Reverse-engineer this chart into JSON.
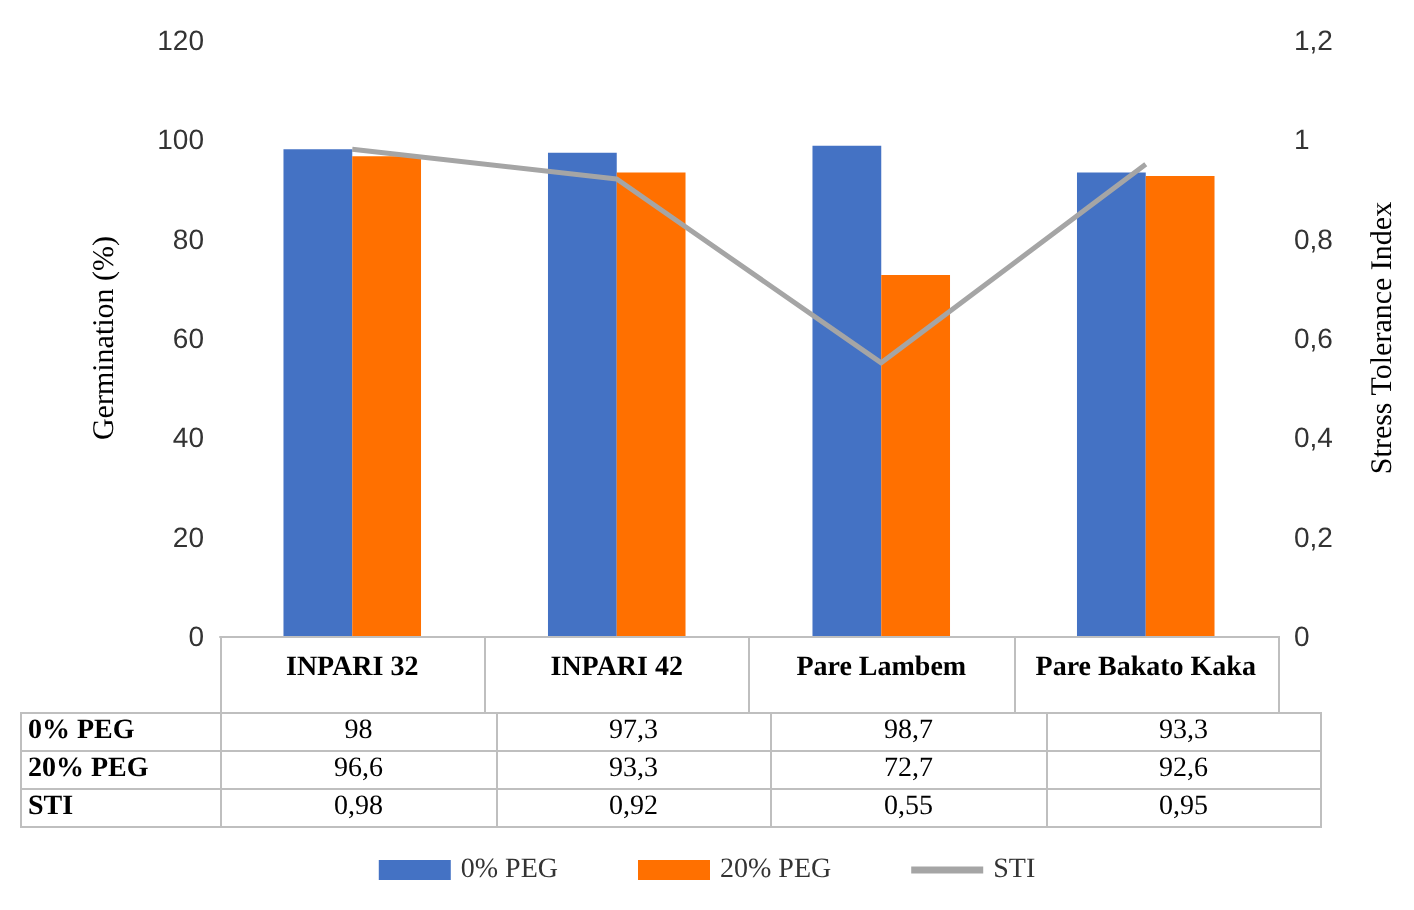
{
  "chart_data": {
    "type": "bar",
    "ylabel": "Germination (%)",
    "y2label": "Stress Tolerance Index",
    "categories": [
      "INPARI 32",
      "INPARI 42",
      "Pare Lambem",
      "Pare Bakato Kaka"
    ],
    "series": [
      {
        "name": "0% PEG",
        "color": "#4472c4",
        "values": [
          98,
          97.3,
          98.7,
          93.3
        ],
        "value_labels": [
          "98",
          "97,3",
          "98,7",
          "93,3"
        ]
      },
      {
        "name": "20% PEG",
        "color": "#ff7000",
        "values": [
          96.6,
          93.3,
          72.7,
          92.6
        ],
        "value_labels": [
          "96,6",
          "93,3",
          "72,7",
          "92,6"
        ]
      },
      {
        "name": "STI",
        "type": "line",
        "axis": "y2",
        "color": "#a5a5a5",
        "values": [
          0.98,
          0.92,
          0.55,
          0.95
        ],
        "value_labels": [
          "0,98",
          "0,92",
          "0,55",
          "0,95"
        ]
      }
    ],
    "ylim": [
      0,
      120
    ],
    "yticks": [
      0,
      20,
      40,
      60,
      80,
      100,
      120
    ],
    "y2lim": [
      0,
      1.2
    ],
    "y2ticks": [
      {
        "value": 0,
        "label": "0"
      },
      {
        "value": 0.2,
        "label": "0,2"
      },
      {
        "value": 0.4,
        "label": "0,4"
      },
      {
        "value": 0.6,
        "label": "0,6"
      },
      {
        "value": 0.8,
        "label": "0,8"
      },
      {
        "value": 1,
        "label": "1"
      },
      {
        "value": 1.2,
        "label": "1,2"
      }
    ],
    "grid": false,
    "legend": "bottom",
    "marker": "none",
    "line_style": "solid"
  }
}
